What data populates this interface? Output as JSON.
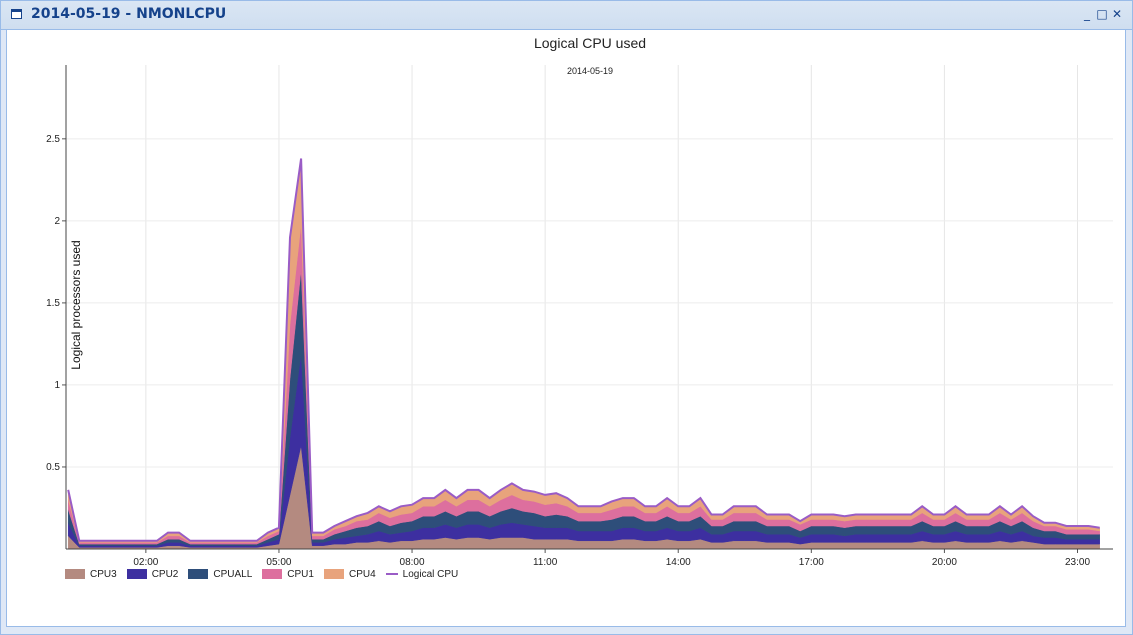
{
  "window": {
    "title": "2014-05-19 - NMONLCPU"
  },
  "tools": {
    "minimize": "_",
    "maximize": "□",
    "close": "✕"
  },
  "chart_data": {
    "type": "area",
    "stacked": true,
    "title": "Logical CPU used",
    "subtitle": "2014-05-19",
    "ylabel": "Logical processors used",
    "xlabel": "",
    "ylim": [
      0,
      2.95
    ],
    "yticks": [
      0.5,
      1,
      1.5,
      2,
      2.5
    ],
    "ytick_labels": [
      "0.5",
      "1",
      "1.5",
      "2",
      "2.5"
    ],
    "xlim_hours": [
      0.2,
      23.8
    ],
    "xticks_hours": [
      2,
      5,
      8,
      11,
      14,
      17,
      20,
      23
    ],
    "xtick_labels": [
      "02:00",
      "05:00",
      "08:00",
      "11:00",
      "14:00",
      "17:00",
      "20:00",
      "23:00"
    ],
    "grid": true,
    "legend": "bottom-left",
    "x_hours": [
      0.25,
      0.5,
      0.75,
      1,
      1.25,
      1.5,
      1.75,
      2,
      2.25,
      2.5,
      2.75,
      3,
      3.25,
      3.5,
      3.75,
      4,
      4.25,
      4.5,
      4.75,
      5,
      5.25,
      5.5,
      5.75,
      6,
      6.25,
      6.5,
      6.75,
      7,
      7.25,
      7.5,
      7.75,
      8,
      8.25,
      8.5,
      8.75,
      9,
      9.25,
      9.5,
      9.75,
      10,
      10.25,
      10.5,
      10.75,
      11,
      11.25,
      11.5,
      11.75,
      12,
      12.25,
      12.5,
      12.75,
      13,
      13.25,
      13.5,
      13.75,
      14,
      14.25,
      14.5,
      14.75,
      15,
      15.25,
      15.5,
      15.75,
      16,
      16.25,
      16.5,
      16.75,
      17,
      17.25,
      17.5,
      17.75,
      18,
      18.25,
      18.5,
      18.75,
      19,
      19.25,
      19.5,
      19.75,
      20,
      20.25,
      20.5,
      20.75,
      21,
      21.25,
      21.5,
      21.75,
      22,
      22.25,
      22.5,
      22.75,
      23,
      23.25,
      23.5
    ],
    "series": [
      {
        "name": "CPU3",
        "color": "#b48a80",
        "values": [
          0.08,
          0.01,
          0.01,
          0.01,
          0.01,
          0.01,
          0.01,
          0.01,
          0.01,
          0.02,
          0.02,
          0.01,
          0.01,
          0.01,
          0.01,
          0.01,
          0.01,
          0.01,
          0.02,
          0.03,
          0.33,
          0.63,
          0.02,
          0.02,
          0.03,
          0.03,
          0.04,
          0.04,
          0.05,
          0.04,
          0.05,
          0.05,
          0.06,
          0.06,
          0.07,
          0.06,
          0.07,
          0.07,
          0.06,
          0.07,
          0.07,
          0.07,
          0.06,
          0.06,
          0.06,
          0.06,
          0.05,
          0.05,
          0.05,
          0.05,
          0.06,
          0.06,
          0.05,
          0.05,
          0.06,
          0.05,
          0.05,
          0.06,
          0.04,
          0.04,
          0.05,
          0.05,
          0.05,
          0.04,
          0.04,
          0.04,
          0.03,
          0.04,
          0.04,
          0.04,
          0.04,
          0.04,
          0.04,
          0.04,
          0.04,
          0.04,
          0.04,
          0.05,
          0.04,
          0.04,
          0.05,
          0.04,
          0.04,
          0.04,
          0.05,
          0.04,
          0.05,
          0.04,
          0.03,
          0.03,
          0.03,
          0.03,
          0.03,
          0.03
        ]
      },
      {
        "name": "CPU2",
        "color": "#3d2fa0",
        "values": [
          0.08,
          0.01,
          0.01,
          0.01,
          0.01,
          0.01,
          0.01,
          0.01,
          0.01,
          0.02,
          0.02,
          0.01,
          0.01,
          0.01,
          0.01,
          0.01,
          0.01,
          0.01,
          0.02,
          0.03,
          0.35,
          0.56,
          0.02,
          0.02,
          0.03,
          0.04,
          0.04,
          0.05,
          0.06,
          0.05,
          0.05,
          0.06,
          0.07,
          0.07,
          0.08,
          0.07,
          0.08,
          0.08,
          0.07,
          0.08,
          0.09,
          0.08,
          0.08,
          0.07,
          0.07,
          0.07,
          0.06,
          0.06,
          0.06,
          0.06,
          0.07,
          0.07,
          0.06,
          0.06,
          0.07,
          0.06,
          0.06,
          0.07,
          0.05,
          0.05,
          0.06,
          0.06,
          0.06,
          0.05,
          0.05,
          0.05,
          0.04,
          0.05,
          0.05,
          0.05,
          0.04,
          0.05,
          0.05,
          0.05,
          0.05,
          0.05,
          0.05,
          0.06,
          0.05,
          0.05,
          0.06,
          0.05,
          0.05,
          0.05,
          0.06,
          0.05,
          0.06,
          0.04,
          0.04,
          0.04,
          0.03,
          0.03,
          0.03,
          0.03
        ]
      },
      {
        "name": "CPUALL",
        "color": "#2e4e7a",
        "values": [
          0.08,
          0.01,
          0.01,
          0.01,
          0.01,
          0.01,
          0.01,
          0.01,
          0.01,
          0.02,
          0.02,
          0.01,
          0.01,
          0.01,
          0.01,
          0.01,
          0.01,
          0.01,
          0.02,
          0.03,
          0.36,
          0.51,
          0.02,
          0.02,
          0.03,
          0.04,
          0.05,
          0.05,
          0.06,
          0.05,
          0.06,
          0.06,
          0.07,
          0.07,
          0.08,
          0.07,
          0.08,
          0.08,
          0.07,
          0.08,
          0.09,
          0.08,
          0.08,
          0.07,
          0.08,
          0.07,
          0.06,
          0.06,
          0.06,
          0.07,
          0.07,
          0.07,
          0.06,
          0.06,
          0.07,
          0.06,
          0.06,
          0.07,
          0.05,
          0.05,
          0.06,
          0.06,
          0.06,
          0.05,
          0.05,
          0.05,
          0.04,
          0.05,
          0.05,
          0.05,
          0.05,
          0.05,
          0.05,
          0.05,
          0.05,
          0.05,
          0.05,
          0.06,
          0.05,
          0.05,
          0.06,
          0.05,
          0.05,
          0.05,
          0.06,
          0.05,
          0.06,
          0.05,
          0.04,
          0.04,
          0.03,
          0.03,
          0.03,
          0.03
        ]
      },
      {
        "name": "CPU1",
        "color": "#dd6f9e",
        "values": [
          0.06,
          0.01,
          0.01,
          0.01,
          0.01,
          0.01,
          0.01,
          0.01,
          0.01,
          0.02,
          0.02,
          0.01,
          0.01,
          0.01,
          0.01,
          0.01,
          0.01,
          0.01,
          0.02,
          0.02,
          0.33,
          0.28,
          0.02,
          0.02,
          0.03,
          0.03,
          0.04,
          0.04,
          0.05,
          0.05,
          0.05,
          0.05,
          0.06,
          0.06,
          0.07,
          0.06,
          0.07,
          0.07,
          0.06,
          0.07,
          0.08,
          0.07,
          0.07,
          0.07,
          0.07,
          0.06,
          0.05,
          0.05,
          0.05,
          0.06,
          0.06,
          0.06,
          0.05,
          0.05,
          0.06,
          0.05,
          0.05,
          0.06,
          0.04,
          0.04,
          0.05,
          0.05,
          0.05,
          0.04,
          0.04,
          0.04,
          0.04,
          0.04,
          0.04,
          0.04,
          0.04,
          0.04,
          0.04,
          0.04,
          0.04,
          0.04,
          0.04,
          0.05,
          0.04,
          0.04,
          0.05,
          0.04,
          0.04,
          0.04,
          0.05,
          0.04,
          0.05,
          0.04,
          0.03,
          0.03,
          0.03,
          0.03,
          0.03,
          0.02
        ]
      },
      {
        "name": "CPU4",
        "color": "#e8a37c",
        "values": [
          0.06,
          0.01,
          0.01,
          0.01,
          0.01,
          0.01,
          0.01,
          0.01,
          0.01,
          0.02,
          0.02,
          0.01,
          0.01,
          0.01,
          0.01,
          0.01,
          0.01,
          0.01,
          0.02,
          0.02,
          0.53,
          0.4,
          0.02,
          0.02,
          0.02,
          0.03,
          0.03,
          0.04,
          0.04,
          0.04,
          0.05,
          0.05,
          0.05,
          0.05,
          0.06,
          0.05,
          0.06,
          0.06,
          0.05,
          0.06,
          0.07,
          0.06,
          0.06,
          0.06,
          0.06,
          0.05,
          0.04,
          0.04,
          0.04,
          0.05,
          0.05,
          0.05,
          0.04,
          0.04,
          0.05,
          0.04,
          0.04,
          0.05,
          0.03,
          0.03,
          0.04,
          0.04,
          0.04,
          0.03,
          0.03,
          0.03,
          0.02,
          0.03,
          0.03,
          0.03,
          0.03,
          0.03,
          0.03,
          0.03,
          0.03,
          0.03,
          0.03,
          0.04,
          0.03,
          0.03,
          0.04,
          0.03,
          0.03,
          0.03,
          0.04,
          0.03,
          0.04,
          0.03,
          0.02,
          0.02,
          0.02,
          0.02,
          0.02,
          0.02
        ]
      }
    ],
    "line": {
      "name": "Logical CPU",
      "color": "#9a5cc6"
    }
  }
}
